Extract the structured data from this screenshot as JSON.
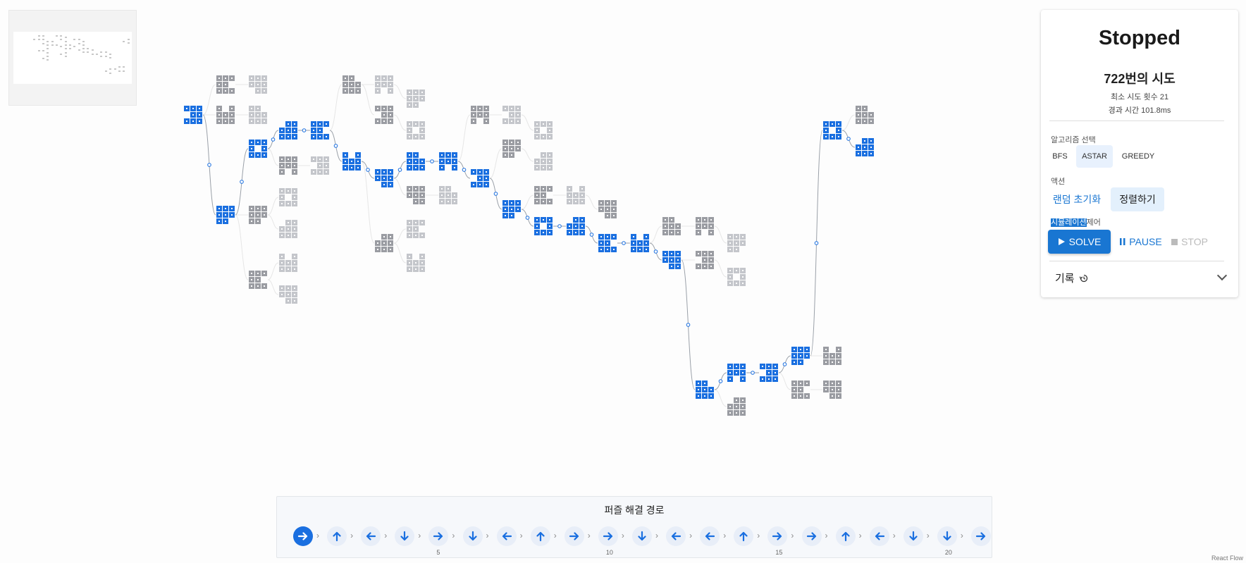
{
  "panel": {
    "status": "Stopped",
    "attempts": "722번의 시도",
    "min_attempts": "최소 시도 횟수 21",
    "elapsed": "경과 시간 101.8ms",
    "algo_label": "알고리즘 선택",
    "algorithms": [
      "BFS",
      "ASTAR",
      "GREEDY"
    ],
    "selected_algorithm": "ASTAR",
    "action_label": "액션",
    "random_init": "랜덤 초기화",
    "sort": "정렬하기",
    "sim_label_highlight": "시뮬레이션",
    "sim_label_rest": "제어",
    "solve": "SOLVE",
    "pause": "PAUSE",
    "stop": "STOP",
    "history": "기록"
  },
  "path": {
    "title": "퍼즐 해결 경로",
    "steps": [
      "right",
      "up",
      "left",
      "down",
      "right",
      "down",
      "left",
      "up",
      "right",
      "right",
      "down",
      "left",
      "left",
      "up",
      "right",
      "right",
      "up",
      "left",
      "down",
      "down",
      "right"
    ],
    "numbers": [
      "5",
      "10",
      "15",
      "20"
    ]
  },
  "footer": "React Flow",
  "colors": {
    "blue": "#1a6fe0",
    "gray": "#9a9ca2",
    "light_gray": "#c4c6cb",
    "accent": "#1976d2"
  },
  "icons": {
    "solve": "play-icon",
    "pause": "pause-icon",
    "stop": "stop-icon",
    "history": "history-icon",
    "toggle": "chevron-down-icon",
    "steps": "arrow-icon"
  }
}
